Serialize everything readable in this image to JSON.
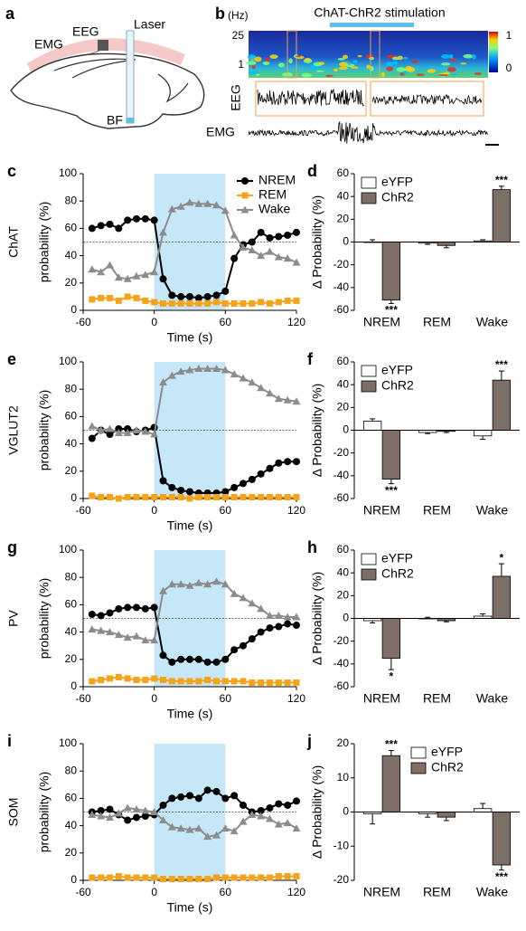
{
  "panel_a": {
    "label": "a",
    "emg": "EMG",
    "eeg": "EEG",
    "laser": "Laser",
    "bf": "BF"
  },
  "panel_b": {
    "label": "b",
    "unit": "(Hz)",
    "freq_top": "25",
    "freq_bottom": "1",
    "title": "ChAT-ChR2 stimulation",
    "colorbar_top": "1",
    "colorbar_bottom": "0",
    "eeg": "EEG",
    "emg": "EMG"
  },
  "chart_data": [
    {
      "type": "line",
      "panel": "c",
      "row_label": "ChAT",
      "ylabel": "probability (%)",
      "xlabel": "Time (s)",
      "xlim": [
        -60,
        120
      ],
      "xticks": [
        -60,
        0,
        60,
        120
      ],
      "ylim": [
        0,
        100
      ],
      "yticks": [
        0,
        20,
        40,
        60,
        80,
        100
      ],
      "shade_x": [
        0,
        60
      ],
      "shade_color": "#c6e7f8",
      "ref_line": 50,
      "legend": true,
      "x": [
        -52.5,
        -45,
        -37.5,
        -30,
        -22.5,
        -15,
        -7.5,
        0,
        7.5,
        15,
        22.5,
        30,
        37.5,
        45,
        52.5,
        60,
        67.5,
        75,
        82.5,
        90,
        97.5,
        105,
        112.5,
        120
      ],
      "series": [
        {
          "name": "NREM",
          "color": "#000000",
          "marker": "circle",
          "values": [
            60,
            62,
            63,
            60,
            66,
            67,
            67,
            66,
            23,
            11,
            10,
            10,
            9,
            10,
            11,
            14,
            38,
            48,
            50,
            57,
            53,
            54,
            55,
            57
          ]
        },
        {
          "name": "REM",
          "color": "#f5a31a",
          "marker": "square",
          "values": [
            8,
            9,
            9,
            7,
            10,
            9,
            7,
            6,
            5,
            5,
            5,
            5,
            5,
            5,
            6,
            5,
            5,
            5,
            5,
            6,
            5,
            6,
            7,
            7
          ]
        },
        {
          "name": "Wake",
          "color": "#8c8c8c",
          "marker": "triangle",
          "values": [
            30,
            28,
            33,
            24,
            23,
            25,
            26,
            28,
            57,
            74,
            76,
            79,
            78,
            78,
            77,
            73,
            55,
            46,
            44,
            40,
            43,
            39,
            38,
            35
          ]
        }
      ]
    },
    {
      "type": "bar",
      "panel": "d",
      "ylabel": "Δ Probability (%)",
      "categories": [
        "NREM",
        "REM",
        "Wake"
      ],
      "ylim": [
        -60,
        60
      ],
      "yticks": [
        -60,
        -40,
        -20,
        0,
        20,
        40,
        60
      ],
      "legend_loc": "upper left",
      "series": [
        {
          "name": "eYFP",
          "color": "#ffffff",
          "values": [
            0,
            -1,
            1
          ],
          "errors": [
            2,
            1,
            1
          ]
        },
        {
          "name": "ChR2",
          "color": "#7d6e66",
          "values": [
            -51,
            -3,
            46
          ],
          "errors": [
            3,
            2,
            3
          ],
          "significance": [
            "***",
            null,
            "***"
          ]
        }
      ]
    },
    {
      "type": "line",
      "panel": "e",
      "row_label": "VGLUT2",
      "ylabel": "probability (%)",
      "xlabel": "Time (s)",
      "xlim": [
        -60,
        120
      ],
      "xticks": [
        -60,
        0,
        60,
        120
      ],
      "ylim": [
        0,
        100
      ],
      "yticks": [
        0,
        20,
        40,
        60,
        80,
        100
      ],
      "shade_x": [
        0,
        60
      ],
      "shade_color": "#c6e7f8",
      "ref_line": 50,
      "legend": false,
      "x": [
        -52.5,
        -45,
        -37.5,
        -30,
        -22.5,
        -15,
        -7.5,
        0,
        7.5,
        15,
        22.5,
        30,
        37.5,
        45,
        52.5,
        60,
        67.5,
        75,
        82.5,
        90,
        97.5,
        105,
        112.5,
        120
      ],
      "series": [
        {
          "color": "#000000",
          "marker": "circle",
          "values": [
            44,
            50,
            47,
            51,
            51,
            49,
            50,
            52,
            13,
            8,
            6,
            5,
            4,
            4,
            4,
            5,
            8,
            11,
            14,
            18,
            22,
            26,
            27,
            27
          ]
        },
        {
          "color": "#f5a31a",
          "marker": "square",
          "values": [
            2,
            1,
            1,
            0,
            1,
            1,
            1,
            1,
            1,
            1,
            1,
            0,
            1,
            1,
            1,
            1,
            1,
            1,
            1,
            1,
            1,
            1,
            1,
            1
          ]
        },
        {
          "color": "#8c8c8c",
          "marker": "triangle",
          "values": [
            53,
            50,
            51,
            48,
            48,
            50,
            49,
            47,
            85,
            90,
            93,
            94,
            95,
            95,
            95,
            94,
            91,
            88,
            85,
            81,
            77,
            73,
            72,
            71
          ]
        }
      ]
    },
    {
      "type": "bar",
      "panel": "f",
      "ylabel": "Δ Probability (%)",
      "categories": [
        "NREM",
        "REM",
        "Wake"
      ],
      "ylim": [
        -60,
        60
      ],
      "yticks": [
        -60,
        -40,
        -20,
        0,
        20,
        40,
        60
      ],
      "legend_loc": "upper left",
      "series": [
        {
          "name": "eYFP",
          "color": "#ffffff",
          "values": [
            8,
            -2,
            -5
          ],
          "errors": [
            2,
            1,
            3
          ]
        },
        {
          "name": "ChR2",
          "color": "#7d6e66",
          "values": [
            -43,
            -1,
            44
          ],
          "errors": [
            4,
            1,
            8
          ],
          "significance": [
            "***",
            null,
            "***"
          ]
        }
      ]
    },
    {
      "type": "line",
      "panel": "g",
      "row_label": "PV",
      "ylabel": "probability (%)",
      "xlabel": "Time (s)",
      "xlim": [
        -60,
        120
      ],
      "xticks": [
        -60,
        0,
        60,
        120
      ],
      "ylim": [
        0,
        100
      ],
      "yticks": [
        0,
        20,
        40,
        60,
        80,
        100
      ],
      "shade_x": [
        0,
        60
      ],
      "shade_color": "#c6e7f8",
      "ref_line": 50,
      "legend": false,
      "x": [
        -52.5,
        -45,
        -37.5,
        -30,
        -22.5,
        -15,
        -7.5,
        0,
        7.5,
        15,
        22.5,
        30,
        37.5,
        45,
        52.5,
        60,
        67.5,
        75,
        82.5,
        90,
        97.5,
        105,
        112.5,
        120
      ],
      "series": [
        {
          "color": "#000000",
          "marker": "circle",
          "values": [
            53,
            52,
            54,
            57,
            58,
            58,
            57,
            58,
            23,
            18,
            20,
            20,
            20,
            18,
            18,
            20,
            27,
            30,
            35,
            40,
            43,
            44,
            46,
            45
          ]
        },
        {
          "color": "#f5a31a",
          "marker": "square",
          "values": [
            4,
            5,
            6,
            7,
            6,
            5,
            5,
            6,
            5,
            4,
            4,
            4,
            4,
            5,
            4,
            4,
            4,
            4,
            3,
            3,
            3,
            3,
            3,
            3
          ]
        },
        {
          "color": "#8c8c8c",
          "marker": "triangle",
          "values": [
            42,
            41,
            40,
            38,
            36,
            37,
            34,
            34,
            70,
            75,
            75,
            74,
            76,
            75,
            77,
            75,
            68,
            65,
            61,
            57,
            52,
            52,
            51,
            51
          ]
        }
      ]
    },
    {
      "type": "bar",
      "panel": "h",
      "ylabel": "Δ Probability (%)",
      "categories": [
        "NREM",
        "REM",
        "Wake"
      ],
      "ylim": [
        -60,
        60
      ],
      "yticks": [
        -60,
        -40,
        -20,
        0,
        20,
        40,
        60
      ],
      "legend_loc": "upper left",
      "series": [
        {
          "name": "eYFP",
          "color": "#ffffff",
          "values": [
            -2,
            0,
            2
          ],
          "errors": [
            2,
            1,
            2
          ]
        },
        {
          "name": "ChR2",
          "color": "#7d6e66",
          "values": [
            -35,
            -2,
            37
          ],
          "errors": [
            10,
            1,
            11
          ],
          "significance": [
            "*",
            null,
            "*"
          ]
        }
      ]
    },
    {
      "type": "line",
      "panel": "i",
      "row_label": "SOM",
      "ylabel": "probability (%)",
      "xlabel": "Time (s)",
      "xlim": [
        -60,
        120
      ],
      "xticks": [
        -60,
        0,
        60,
        120
      ],
      "ylim": [
        0,
        100
      ],
      "yticks": [
        0,
        20,
        40,
        60,
        80,
        100
      ],
      "shade_x": [
        0,
        60
      ],
      "shade_color": "#c6e7f8",
      "ref_line": 50,
      "legend": false,
      "x": [
        -52.5,
        -45,
        -37.5,
        -30,
        -22.5,
        -15,
        -7.5,
        0,
        7.5,
        15,
        22.5,
        30,
        37.5,
        45,
        52.5,
        60,
        67.5,
        75,
        82.5,
        90,
        97.5,
        105,
        112.5,
        120
      ],
      "series": [
        {
          "color": "#000000",
          "marker": "circle",
          "values": [
            50,
            51,
            52,
            48,
            44,
            46,
            47,
            48,
            55,
            60,
            61,
            62,
            60,
            66,
            65,
            60,
            62,
            55,
            50,
            51,
            53,
            56,
            55,
            58
          ]
        },
        {
          "color": "#f5a31a",
          "marker": "square",
          "values": [
            2,
            2,
            2,
            3,
            2,
            2,
            2,
            2,
            1,
            1,
            1,
            1,
            1,
            1,
            2,
            2,
            2,
            2,
            2,
            2,
            2,
            3,
            3,
            3
          ]
        },
        {
          "color": "#8c8c8c",
          "marker": "triangle",
          "values": [
            48,
            47,
            46,
            49,
            53,
            52,
            51,
            50,
            44,
            39,
            38,
            37,
            38,
            32,
            33,
            38,
            36,
            43,
            48,
            47,
            45,
            41,
            42,
            38
          ]
        }
      ]
    },
    {
      "type": "bar",
      "panel": "j",
      "ylabel": "Δ Probability (%)",
      "categories": [
        "NREM",
        "REM",
        "Wake"
      ],
      "ylim": [
        -20,
        20
      ],
      "yticks": [
        -20,
        -10,
        0,
        10,
        20
      ],
      "legend_loc": "upper right",
      "series": [
        {
          "name": "eYFP",
          "color": "#ffffff",
          "values": [
            -0.5,
            -0.5,
            1
          ],
          "errors": [
            3,
            1,
            1.5
          ]
        },
        {
          "name": "ChR2",
          "color": "#7d6e66",
          "values": [
            16.5,
            -1.5,
            -15.5
          ],
          "errors": [
            1.5,
            1,
            1.5
          ],
          "significance": [
            "***",
            null,
            "***"
          ]
        }
      ]
    }
  ]
}
